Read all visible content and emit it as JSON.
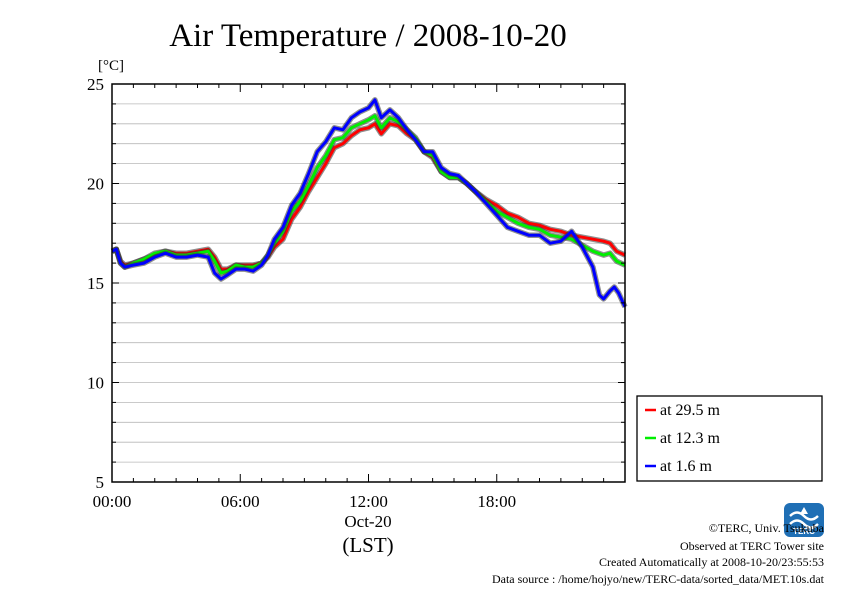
{
  "chart_data": {
    "type": "line",
    "title": "Air Temperature / 2008-10-20",
    "ylabel": "[°C]",
    "xlabel_date": "Oct-20",
    "xlabel": "(LST)",
    "ylim": [
      5,
      25
    ],
    "xlim_hours": [
      0,
      24
    ],
    "y_ticks": [
      "25",
      "20",
      "15",
      "10",
      "5"
    ],
    "x_ticks": [
      "00:00",
      "06:00",
      "12:00",
      "18:00"
    ],
    "grid": true,
    "legend_position": "right",
    "series": [
      {
        "name": "at 29.5 m",
        "color": "#ff0000",
        "points": [
          [
            0,
            16.6
          ],
          [
            0.2,
            16.7
          ],
          [
            0.4,
            16.1
          ],
          [
            0.6,
            15.9
          ],
          [
            1,
            16.0
          ],
          [
            1.5,
            16.2
          ],
          [
            2,
            16.4
          ],
          [
            2.5,
            16.6
          ],
          [
            3,
            16.5
          ],
          [
            3.5,
            16.5
          ],
          [
            4,
            16.6
          ],
          [
            4.5,
            16.7
          ],
          [
            4.8,
            16.3
          ],
          [
            5.1,
            15.7
          ],
          [
            5.4,
            15.7
          ],
          [
            5.8,
            15.9
          ],
          [
            6.2,
            15.9
          ],
          [
            6.6,
            15.9
          ],
          [
            7,
            16.0
          ],
          [
            7.3,
            16.3
          ],
          [
            7.6,
            16.8
          ],
          [
            8,
            17.2
          ],
          [
            8.4,
            18.2
          ],
          [
            8.8,
            18.8
          ],
          [
            9.2,
            19.6
          ],
          [
            9.6,
            20.3
          ],
          [
            10,
            21.0
          ],
          [
            10.4,
            21.8
          ],
          [
            10.8,
            22.0
          ],
          [
            11.2,
            22.4
          ],
          [
            11.6,
            22.7
          ],
          [
            12,
            22.8
          ],
          [
            12.3,
            23.0
          ],
          [
            12.6,
            22.5
          ],
          [
            13,
            23.0
          ],
          [
            13.4,
            22.9
          ],
          [
            13.8,
            22.5
          ],
          [
            14.2,
            22.2
          ],
          [
            14.6,
            21.6
          ],
          [
            15,
            21.3
          ],
          [
            15.4,
            20.6
          ],
          [
            15.8,
            20.3
          ],
          [
            16.2,
            20.3
          ],
          [
            16.6,
            20.0
          ],
          [
            17,
            19.6
          ],
          [
            17.5,
            19.2
          ],
          [
            18,
            18.9
          ],
          [
            18.5,
            18.5
          ],
          [
            19,
            18.3
          ],
          [
            19.5,
            18.0
          ],
          [
            20,
            17.9
          ],
          [
            20.5,
            17.7
          ],
          [
            21,
            17.6
          ],
          [
            21.5,
            17.4
          ],
          [
            22,
            17.3
          ],
          [
            22.5,
            17.2
          ],
          [
            23,
            17.1
          ],
          [
            23.3,
            17.0
          ],
          [
            23.6,
            16.6
          ],
          [
            24,
            16.4
          ]
        ]
      },
      {
        "name": "at 12.3 m",
        "color": "#00ee00",
        "points": [
          [
            0,
            16.6
          ],
          [
            0.2,
            16.7
          ],
          [
            0.4,
            16.0
          ],
          [
            0.6,
            15.8
          ],
          [
            1,
            16.0
          ],
          [
            1.5,
            16.2
          ],
          [
            2,
            16.5
          ],
          [
            2.5,
            16.6
          ],
          [
            3,
            16.4
          ],
          [
            3.5,
            16.4
          ],
          [
            4,
            16.5
          ],
          [
            4.5,
            16.6
          ],
          [
            4.8,
            16.1
          ],
          [
            5.1,
            15.5
          ],
          [
            5.4,
            15.6
          ],
          [
            5.8,
            15.9
          ],
          [
            6.2,
            15.8
          ],
          [
            6.6,
            15.8
          ],
          [
            7,
            16.0
          ],
          [
            7.3,
            16.4
          ],
          [
            7.6,
            17.0
          ],
          [
            8,
            17.6
          ],
          [
            8.4,
            18.6
          ],
          [
            8.8,
            19.1
          ],
          [
            9.2,
            19.9
          ],
          [
            9.6,
            20.8
          ],
          [
            10,
            21.4
          ],
          [
            10.4,
            22.2
          ],
          [
            10.8,
            22.3
          ],
          [
            11.2,
            22.8
          ],
          [
            11.6,
            23.0
          ],
          [
            12,
            23.2
          ],
          [
            12.3,
            23.4
          ],
          [
            12.6,
            22.8
          ],
          [
            13,
            23.3
          ],
          [
            13.4,
            23.1
          ],
          [
            13.8,
            22.7
          ],
          [
            14.2,
            22.3
          ],
          [
            14.6,
            21.6
          ],
          [
            15,
            21.4
          ],
          [
            15.4,
            20.6
          ],
          [
            15.8,
            20.3
          ],
          [
            16.2,
            20.3
          ],
          [
            16.6,
            20.0
          ],
          [
            17,
            19.6
          ],
          [
            17.5,
            19.1
          ],
          [
            18,
            18.6
          ],
          [
            18.5,
            18.3
          ],
          [
            19,
            18.0
          ],
          [
            19.5,
            17.8
          ],
          [
            20,
            17.7
          ],
          [
            20.5,
            17.4
          ],
          [
            21,
            17.3
          ],
          [
            21.5,
            17.2
          ],
          [
            22,
            16.9
          ],
          [
            22.5,
            16.6
          ],
          [
            23,
            16.4
          ],
          [
            23.3,
            16.5
          ],
          [
            23.6,
            16.1
          ],
          [
            24,
            15.9
          ]
        ]
      },
      {
        "name": "at 1.6 m",
        "color": "#0000ff",
        "points": [
          [
            0,
            16.6
          ],
          [
            0.2,
            16.7
          ],
          [
            0.4,
            16.0
          ],
          [
            0.6,
            15.8
          ],
          [
            1,
            15.9
          ],
          [
            1.5,
            16.0
          ],
          [
            2,
            16.3
          ],
          [
            2.5,
            16.5
          ],
          [
            3,
            16.3
          ],
          [
            3.5,
            16.3
          ],
          [
            4,
            16.4
          ],
          [
            4.5,
            16.3
          ],
          [
            4.8,
            15.5
          ],
          [
            5.1,
            15.2
          ],
          [
            5.4,
            15.4
          ],
          [
            5.8,
            15.7
          ],
          [
            6.2,
            15.7
          ],
          [
            6.6,
            15.6
          ],
          [
            7,
            15.9
          ],
          [
            7.3,
            16.4
          ],
          [
            7.6,
            17.2
          ],
          [
            8,
            17.8
          ],
          [
            8.4,
            18.9
          ],
          [
            8.8,
            19.5
          ],
          [
            9.2,
            20.5
          ],
          [
            9.6,
            21.6
          ],
          [
            10,
            22.1
          ],
          [
            10.4,
            22.8
          ],
          [
            10.8,
            22.7
          ],
          [
            11.2,
            23.3
          ],
          [
            11.6,
            23.6
          ],
          [
            12,
            23.8
          ],
          [
            12.3,
            24.2
          ],
          [
            12.6,
            23.3
          ],
          [
            13,
            23.7
          ],
          [
            13.4,
            23.3
          ],
          [
            13.8,
            22.7
          ],
          [
            14.2,
            22.2
          ],
          [
            14.6,
            21.6
          ],
          [
            15,
            21.6
          ],
          [
            15.4,
            20.8
          ],
          [
            15.8,
            20.5
          ],
          [
            16.2,
            20.4
          ],
          [
            16.6,
            20.0
          ],
          [
            17,
            19.6
          ],
          [
            17.5,
            19.0
          ],
          [
            18,
            18.4
          ],
          [
            18.5,
            17.8
          ],
          [
            19,
            17.6
          ],
          [
            19.5,
            17.4
          ],
          [
            20,
            17.4
          ],
          [
            20.5,
            17.0
          ],
          [
            21,
            17.1
          ],
          [
            21.5,
            17.6
          ],
          [
            22,
            16.8
          ],
          [
            22.5,
            15.8
          ],
          [
            22.8,
            14.4
          ],
          [
            23,
            14.2
          ],
          [
            23.3,
            14.6
          ],
          [
            23.5,
            14.8
          ],
          [
            23.7,
            14.5
          ],
          [
            24,
            13.8
          ]
        ]
      }
    ]
  },
  "credits": {
    "copyright": "©TERC, Univ. Tsukuba",
    "site": "Observed at TERC Tower site",
    "created": "Created Automatically at 2008-10-20/23:55:53",
    "source": "Data source : /home/hojyo/new/TERC-data/sorted_data/MET.10s.dat"
  },
  "logo": {
    "text": "TERC",
    "color": "#1f6fb5",
    "icon": "terc-logo-icon"
  }
}
